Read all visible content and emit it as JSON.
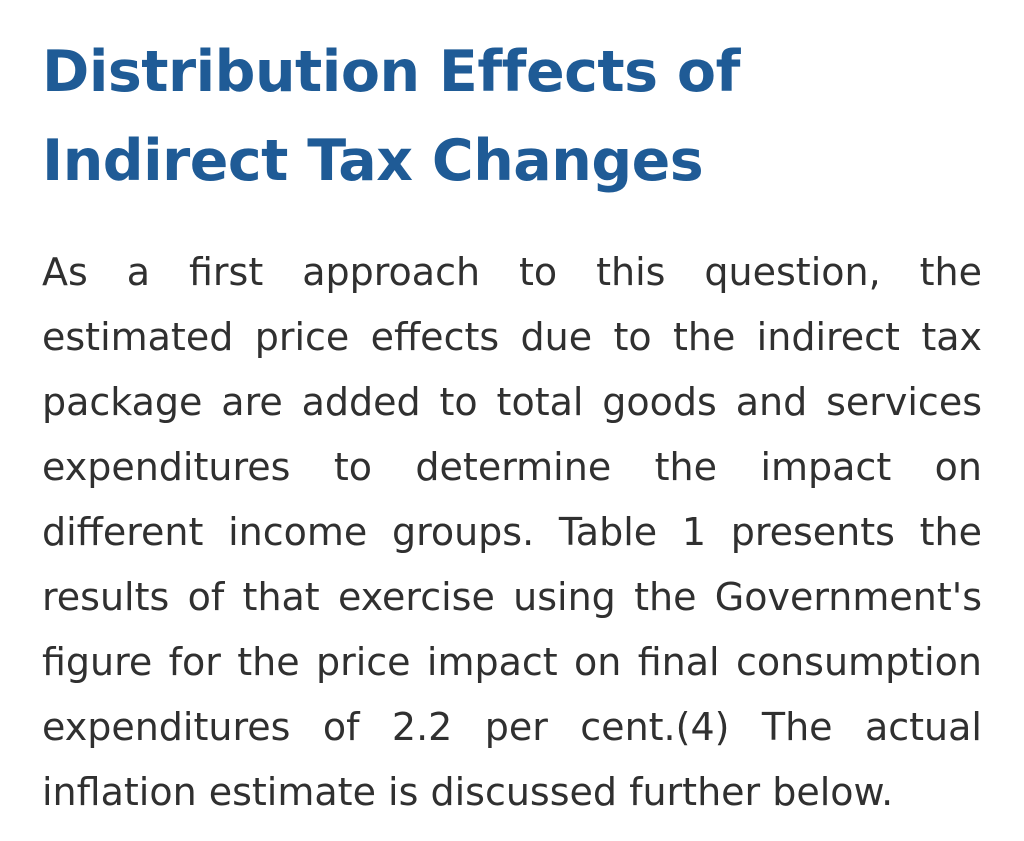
{
  "article": {
    "title_line1": "Distribution Effects of",
    "title_line2": "Indirect Tax Changes",
    "paragraph": "As a first approach to this question, the estimated price effects due to the indirect tax package are added to total goods and services expenditures to determine the impact on different income groups. Table 1 presents the results of that exercise using the Government's figure for the price impact on final consumption expenditures of 2.2 per cent.(4) The actual inflation estimate is discussed further below."
  },
  "colors": {
    "title": "#1f5b96",
    "body_text": "#303030",
    "background": "#ffffff"
  }
}
